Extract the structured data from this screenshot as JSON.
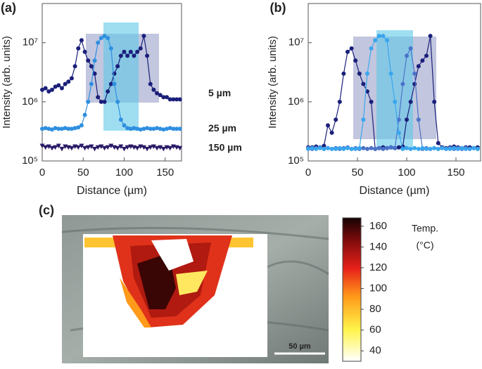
{
  "chart_data": [
    {
      "type": "line",
      "panel_label": "(a)",
      "x_label": "Distance (µm)",
      "y_label": "Intensity (arb. units)",
      "log_y": true,
      "xlim": [
        0,
        170
      ],
      "xticks": [
        0,
        50,
        100,
        150
      ],
      "ylim": [
        100000,
        46000000
      ],
      "yticks": [
        {
          "value": 100000,
          "label": "10⁵"
        },
        {
          "value": 1000000,
          "label": "10⁶"
        },
        {
          "value": 10000000,
          "label": "10⁷"
        }
      ],
      "x": [
        0,
        4,
        8,
        12,
        16,
        20,
        24,
        28,
        32,
        36,
        40,
        44,
        48,
        52,
        56,
        60,
        64,
        68,
        72,
        76,
        80,
        84,
        88,
        92,
        96,
        100,
        104,
        108,
        112,
        116,
        120,
        124,
        128,
        132,
        136,
        140,
        144,
        148,
        152,
        156,
        160,
        164,
        168
      ],
      "series": [
        {
          "name": "5 µm",
          "color": "#1a1f7a",
          "marker": "circle",
          "values": [
            1600000,
            1700000,
            1500000,
            1600000,
            1800000,
            1900000,
            1700000,
            2000000,
            2200000,
            2500000,
            4000000,
            8000000,
            11000000,
            7000000,
            5000000,
            4000000,
            3000000,
            1200000,
            1000000,
            1000000,
            1500000,
            2000000,
            3000000,
            4000000,
            6000000,
            7000000,
            6000000,
            7000000,
            6000000,
            7000000,
            8000000,
            13000000,
            6000000,
            2000000,
            1600000,
            1400000,
            1300000,
            1200000,
            1200000,
            1100000,
            1100000,
            1100000,
            1100000
          ]
        },
        {
          "name": "25 µm",
          "color": "#2f8fe0",
          "marker": "circle",
          "values": [
            350000,
            360000,
            350000,
            340000,
            360000,
            350000,
            350000,
            360000,
            350000,
            350000,
            360000,
            370000,
            400000,
            600000,
            1000000,
            2000000,
            5000000,
            10000000,
            12000000,
            13000000,
            12000000,
            8000000,
            2000000,
            1000000,
            500000,
            400000,
            360000,
            350000,
            360000,
            350000,
            340000,
            350000,
            360000,
            350000,
            350000,
            360000,
            350000,
            340000,
            350000,
            360000,
            350000,
            350000,
            350000
          ]
        },
        {
          "name": "150 µm",
          "color": "#2a1a66",
          "marker": "triangle",
          "values": [
            180000,
            170000,
            175000,
            165000,
            170000,
            180000,
            160000,
            175000,
            170000,
            165000,
            175000,
            170000,
            180000,
            165000,
            170000,
            175000,
            160000,
            170000,
            175000,
            165000,
            170000,
            180000,
            170000,
            165000,
            175000,
            160000,
            170000,
            175000,
            170000,
            165000,
            175000,
            170000,
            160000,
            170000,
            175000,
            165000,
            170000,
            160000,
            170000,
            165000,
            175000,
            170000,
            165000
          ]
        }
      ]
    },
    {
      "type": "line",
      "panel_label": "(b)",
      "x_label": "Distance (µm)",
      "y_label": "Intensity (arb. units)",
      "log_y": true,
      "xlim": [
        0,
        175
      ],
      "xticks": [
        0,
        50,
        100,
        150
      ],
      "ylim": [
        100000,
        46000000
      ],
      "yticks": [
        {
          "value": 100000,
          "label": "10⁵"
        },
        {
          "value": 1000000,
          "label": "10⁶"
        },
        {
          "value": 10000000,
          "label": "10⁷"
        }
      ],
      "x": [
        0,
        4,
        8,
        12,
        16,
        20,
        24,
        28,
        32,
        36,
        40,
        44,
        48,
        52,
        56,
        60,
        64,
        68,
        72,
        76,
        80,
        84,
        88,
        92,
        96,
        100,
        104,
        108,
        112,
        116,
        120,
        124,
        128,
        132,
        136,
        140,
        144,
        148,
        152,
        156,
        160,
        164,
        168,
        172
      ],
      "series": [
        {
          "color": "#1a1f7a",
          "marker": "circle",
          "values": [
            170000,
            170000,
            175000,
            170000,
            180000,
            400000,
            300000,
            500000,
            1000000,
            3000000,
            7000000,
            8000000,
            5000000,
            3000000,
            2000000,
            1500000,
            1000000,
            160000,
            165000,
            170000,
            165000,
            170000,
            165000,
            170000,
            175000,
            500000,
            1000000,
            2000000,
            4000000,
            5000000,
            6000000,
            13000000,
            1000000,
            200000,
            170000,
            165000,
            170000,
            175000,
            170000,
            165000,
            170000,
            170000,
            165000,
            170000
          ]
        },
        {
          "color": "#4a72c8",
          "marker": "circle",
          "values": [
            165000,
            160000,
            165000,
            170000,
            160000,
            165000,
            160000,
            165000,
            160000,
            165000,
            170000,
            160000,
            165000,
            160000,
            165000,
            160000,
            165000,
            160000,
            165000,
            160000,
            165000,
            170000,
            165000,
            500000,
            2000000,
            6000000,
            8000000,
            3000000,
            500000,
            160000,
            165000,
            160000,
            165000,
            160000,
            165000,
            160000,
            165000,
            160000,
            165000,
            160000,
            165000,
            160000,
            165000,
            160000
          ]
        },
        {
          "color": "#3aa6ee",
          "marker": "circle",
          "values": [
            160000,
            165000,
            160000,
            165000,
            160000,
            165000,
            160000,
            160000,
            165000,
            160000,
            165000,
            160000,
            160000,
            165000,
            500000,
            3000000,
            8000000,
            11000000,
            13000000,
            13000000,
            11000000,
            3000000,
            1000000,
            300000,
            160000,
            165000,
            160000,
            165000,
            160000,
            165000,
            160000,
            160000,
            165000,
            160000,
            165000,
            160000,
            160000,
            165000,
            160000,
            165000,
            160000,
            160000,
            165000,
            160000
          ]
        }
      ]
    },
    {
      "type": "colorbar",
      "panel_label": "(c)",
      "title": "Temp.",
      "unit": "(°C)",
      "scale_bar": "50 µm",
      "ylim": [
        30,
        168
      ],
      "yticks": [
        40,
        60,
        80,
        100,
        120,
        140,
        160
      ]
    }
  ]
}
